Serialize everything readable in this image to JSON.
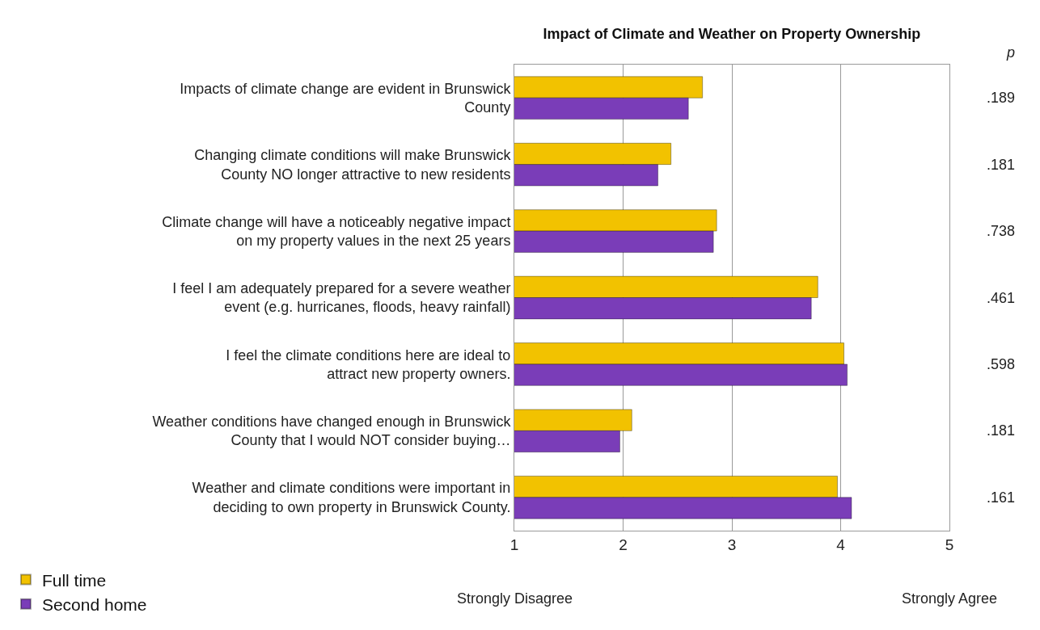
{
  "chart_data": {
    "type": "bar",
    "orientation": "horizontal",
    "title": "Impact of Climate and Weather on Property Ownership",
    "categories": [
      "Impacts of climate change are evident in Brunswick County",
      "Changing climate conditions will make Brunswick County NO longer attractive to new residents",
      "Climate change will have a noticeably negative impact on my property values in the next 25 years",
      "I feel I am adequately prepared for a severe weather event (e.g. hurricanes, floods, heavy rainfall)",
      "I feel the climate conditions here are ideal to attract new property owners.",
      "Weather conditions have changed enough in Brunswick County that I would NOT consider buying…",
      "Weather and climate conditions were important in deciding to own property in Brunswick County."
    ],
    "series": [
      {
        "name": "Full time",
        "color": "#f2c200",
        "values": [
          2.73,
          2.44,
          2.86,
          3.79,
          4.03,
          2.08,
          3.97
        ]
      },
      {
        "name": "Second home",
        "color": "#7a3db8",
        "values": [
          2.6,
          2.32,
          2.83,
          3.73,
          4.06,
          1.97,
          4.1
        ]
      }
    ],
    "xlim": [
      1,
      5
    ],
    "xticks": [
      1,
      2,
      3,
      4,
      5
    ],
    "grid": "x",
    "legend": "bottom left",
    "annotations": [
      "p",
      ".189",
      ".181",
      ".738",
      ".461",
      ".598",
      ".181",
      ".161",
      "Strongly Disagree",
      "Strongly Agree"
    ]
  }
}
